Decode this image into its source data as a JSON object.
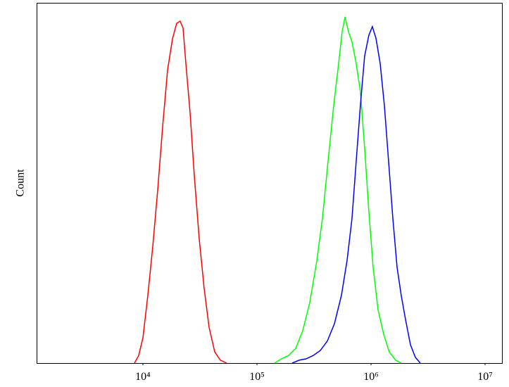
{
  "chart_data": {
    "type": "line",
    "y_label": "Count",
    "log_x": true,
    "xlim": [
      1170,
      14060000
    ],
    "xticks": [
      {
        "value": 10000,
        "label": "10⁴"
      },
      {
        "value": 100000,
        "label": "10⁵"
      },
      {
        "value": 1000000,
        "label": "10⁶"
      },
      {
        "value": 10000000,
        "label": "10⁷"
      }
    ],
    "ylim": [
      0,
      100
    ],
    "series": [
      {
        "color": "#ff0000",
        "x": [
          8430,
          9180,
          10000,
          11050,
          12200,
          13480,
          14890,
          16450,
          18170,
          19770,
          21230,
          22480,
          23820,
          25940,
          28250,
          31200,
          34460,
          38020,
          42630,
          47780,
          54330
        ],
        "values": [
          0,
          2.1,
          7,
          18.8,
          32.4,
          48,
          65.6,
          81.3,
          90,
          94.3,
          94.9,
          93,
          83.2,
          69.5,
          52,
          34.4,
          20.7,
          10,
          3.1,
          0.8,
          0
        ]
      },
      {
        "color": "#00ff00",
        "x": [
          142600,
          164400,
          189700,
          218800,
          251800,
          290400,
          335000,
          375100,
          419800,
          470900,
          520000,
          558500,
          591600,
          634400,
          680800,
          741300,
          807200,
          879000,
          957200,
          1044000,
          1153000,
          1291000,
          1445000,
          1644000,
          1841000
        ],
        "values": [
          0,
          1.2,
          2.1,
          4.1,
          9,
          16.8,
          28.5,
          40.2,
          55.9,
          71.5,
          83.2,
          92,
          96.1,
          92,
          89.1,
          83.2,
          75.4,
          59.8,
          42.2,
          26.6,
          14.8,
          8,
          3.1,
          0.8,
          0
        ]
      },
      {
        "color": "#0000ff",
        "x": [
          203700,
          234600,
          270300,
          311700,
          359400,
          413900,
          477500,
          550800,
          617100,
          680800,
          741300,
          807200,
          879000,
          957200,
          1028000,
          1104000,
          1202000,
          1309000,
          1426000,
          1553000,
          1691000,
          1841000,
          2005000,
          2216000,
          2449000,
          2704000
        ],
        "values": [
          0,
          0.8,
          1.2,
          2.1,
          3.5,
          6.1,
          10.9,
          18.8,
          28.5,
          40.2,
          55.9,
          71.5,
          85.2,
          91,
          93.4,
          90.2,
          83.2,
          71.5,
          55.9,
          40.2,
          26.6,
          18.8,
          12.1,
          5.1,
          1.6,
          0
        ]
      }
    ]
  }
}
